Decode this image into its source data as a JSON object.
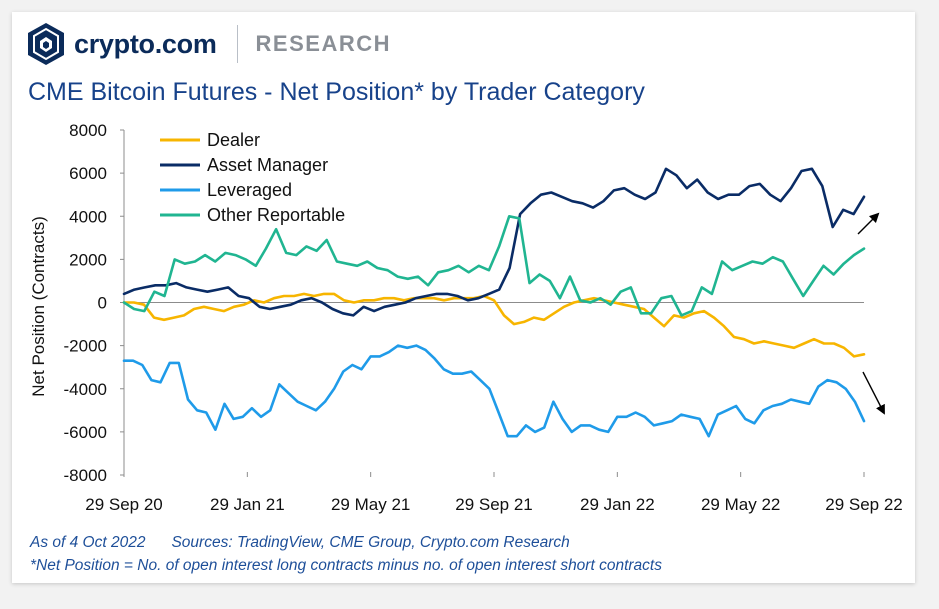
{
  "brand": {
    "name": "crypto.com",
    "section": "RESEARCH"
  },
  "title": "CME Bitcoin Futures - Net Position* by Trader Category",
  "footer": {
    "as_of": "As of 4 Oct 2022",
    "sources": "Sources: TradingView, CME Group, Crypto.com Research",
    "note": "*Net Position = No. of open interest long contracts minus no. of open interest short contracts"
  },
  "chart_data": {
    "type": "line",
    "ylabel": "Net Position (Contracts)",
    "xlabel": "",
    "ylim": [
      -8000,
      8000
    ],
    "yticks": [
      8000,
      6000,
      4000,
      2000,
      0,
      -2000,
      -4000,
      -6000,
      -8000
    ],
    "xticks": [
      "29 Sep 20",
      "29 Jan 21",
      "29 May 21",
      "29 Sep 21",
      "29 Jan 22",
      "29 May 22",
      "29 Sep 22"
    ],
    "x_start": "2020-09-29",
    "x_end": "2022-10-04",
    "grid": false,
    "legend_position": "top-left",
    "annotations": [
      "arrow-up",
      "arrow-down"
    ],
    "series": [
      {
        "name": "Dealer",
        "color": "#f7b500",
        "values": [
          0,
          0,
          -100,
          -700,
          -800,
          -700,
          -600,
          -300,
          -200,
          -300,
          -400,
          -200,
          -100,
          100,
          0,
          200,
          300,
          300,
          400,
          300,
          400,
          400,
          100,
          0,
          100,
          100,
          200,
          200,
          100,
          200,
          200,
          200,
          100,
          200,
          200,
          200,
          300,
          100,
          -600,
          -1000,
          -900,
          -700,
          -800,
          -500,
          -200,
          0,
          100,
          200,
          100,
          0,
          -100,
          -200,
          -300,
          -700,
          -1100,
          -600,
          -700,
          -500,
          -400,
          -700,
          -1100,
          -1600,
          -1700,
          -1900,
          -1800,
          -1900,
          -2000,
          -2100,
          -1900,
          -1700,
          -1900,
          -1900,
          -2100,
          -2500,
          -2400
        ]
      },
      {
        "name": "Asset Manager",
        "color": "#0a2c66",
        "values": [
          400,
          600,
          700,
          800,
          800,
          900,
          700,
          600,
          500,
          600,
          700,
          300,
          200,
          -200,
          -300,
          -200,
          -100,
          100,
          200,
          0,
          -300,
          -500,
          -600,
          -200,
          -400,
          -200,
          -100,
          0,
          200,
          300,
          400,
          400,
          300,
          100,
          200,
          400,
          600,
          1600,
          4100,
          4600,
          5000,
          5100,
          4900,
          4700,
          4600,
          4400,
          4700,
          5200,
          5300,
          5000,
          4800,
          5100,
          6200,
          5900,
          5300,
          5700,
          5100,
          4800,
          5000,
          5000,
          5400,
          5500,
          5000,
          4700,
          5300,
          6100,
          6200,
          5400,
          3500,
          4300,
          4100,
          4900
        ]
      },
      {
        "name": "Leveraged",
        "color": "#1f9be9",
        "values": [
          -2700,
          -2700,
          -2900,
          -3600,
          -3700,
          -2800,
          -2800,
          -4500,
          -5000,
          -5100,
          -5900,
          -4700,
          -5400,
          -5300,
          -4900,
          -5300,
          -5000,
          -3800,
          -4200,
          -4600,
          -4800,
          -5000,
          -4600,
          -4000,
          -3200,
          -2900,
          -3100,
          -2500,
          -2500,
          -2300,
          -2000,
          -2100,
          -2000,
          -2200,
          -2600,
          -3100,
          -3300,
          -3300,
          -3200,
          -3600,
          -4000,
          -5100,
          -6200,
          -6200,
          -5700,
          -6000,
          -5800,
          -4600,
          -5400,
          -6000,
          -5700,
          -5700,
          -5900,
          -6000,
          -5300,
          -5300,
          -5100,
          -5300,
          -5700,
          -5600,
          -5500,
          -5200,
          -5300,
          -5400,
          -6200,
          -5200,
          -5000,
          -4800,
          -5400,
          -5600,
          -5000,
          -4800,
          -4700,
          -4500,
          -4600,
          -4700,
          -3900,
          -3600,
          -3700,
          -4000,
          -4600,
          -5500
        ]
      },
      {
        "name": "Other Reportable",
        "color": "#20b591",
        "values": [
          0,
          -300,
          -400,
          500,
          300,
          2000,
          1800,
          1900,
          2200,
          1900,
          2300,
          2200,
          2000,
          1700,
          2500,
          3400,
          2300,
          2200,
          2600,
          2400,
          2900,
          1900,
          1800,
          1700,
          1900,
          1600,
          1500,
          1200,
          1100,
          1200,
          800,
          1400,
          1500,
          1700,
          1400,
          1700,
          1500,
          2600,
          4000,
          3900,
          900,
          1300,
          1000,
          200,
          1200,
          100,
          0,
          200,
          -100,
          500,
          700,
          -500,
          -500,
          200,
          300,
          -600,
          -400,
          700,
          400,
          1900,
          1500,
          1700,
          1900,
          1800,
          2100,
          1900,
          1100,
          300,
          1000,
          1700,
          1300,
          1800,
          2200,
          2500
        ]
      }
    ]
  }
}
